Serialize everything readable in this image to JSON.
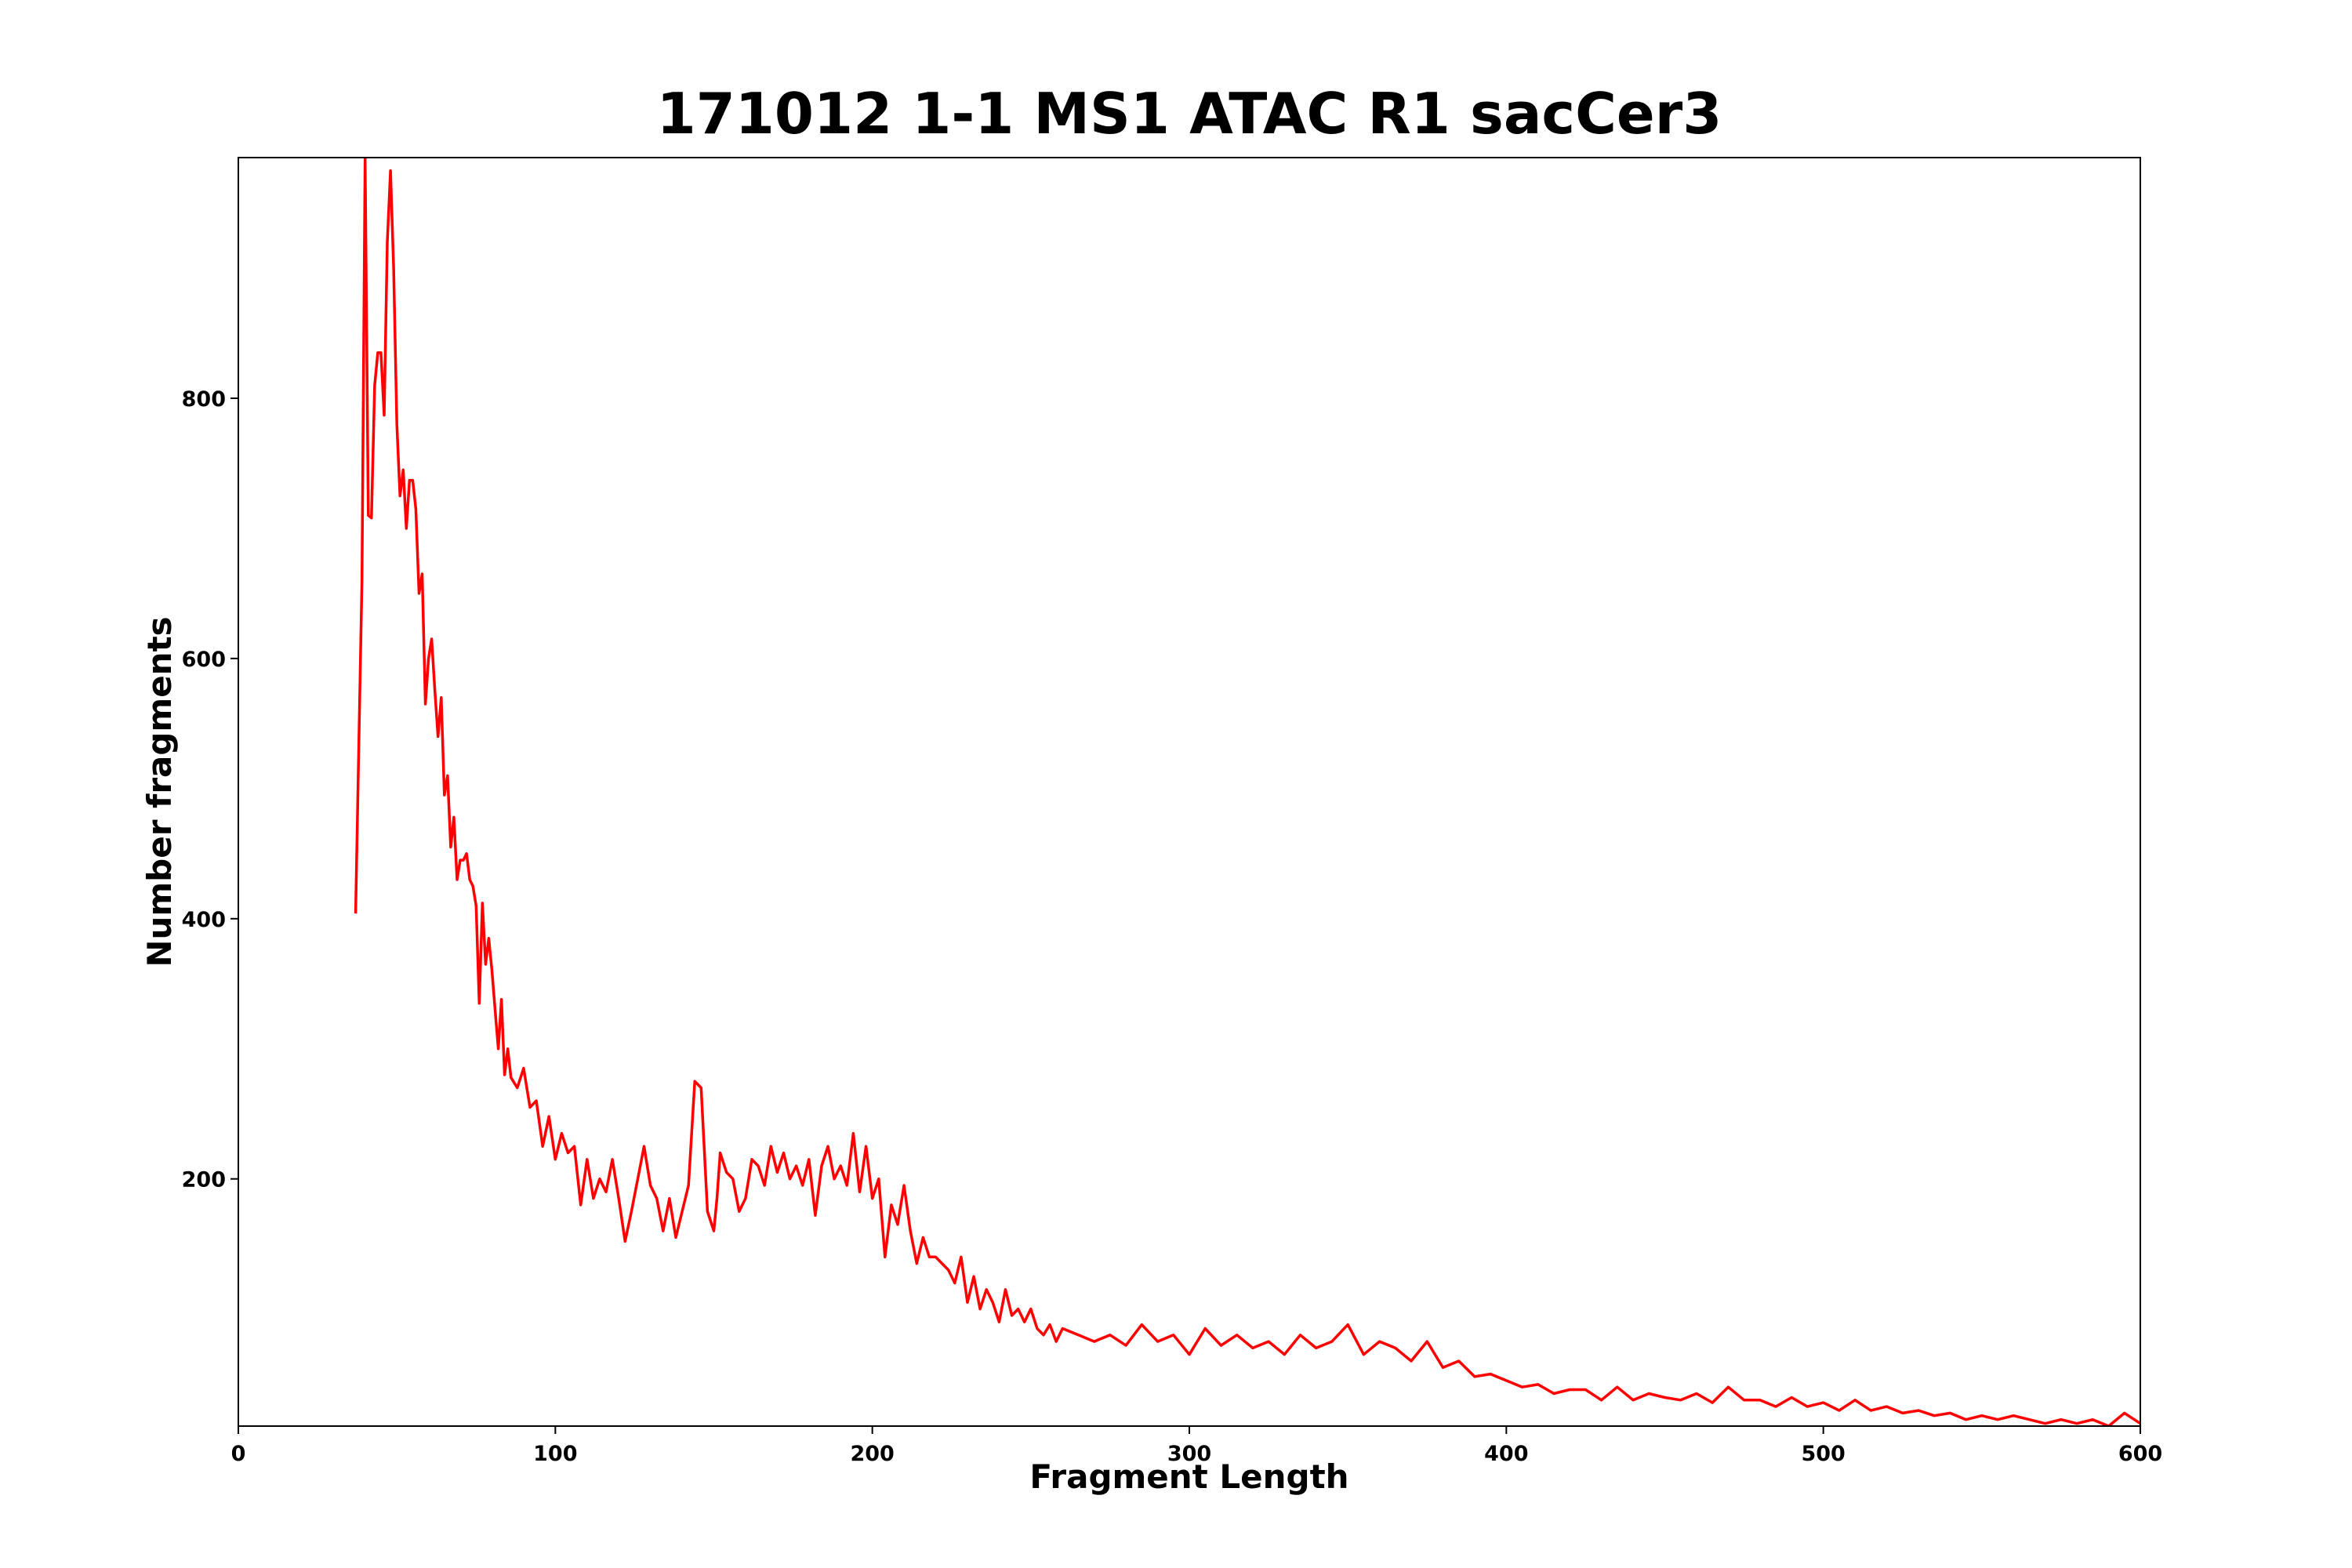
{
  "chart_data": {
    "type": "line",
    "title": "171012 1-1 MS1 ATAC R1 sacCer3",
    "xlabel": "Fragment Length",
    "ylabel": "Number fragments",
    "x": [
      37,
      39,
      40,
      41,
      42,
      43,
      44,
      45,
      46,
      47,
      48,
      49,
      50,
      51,
      52,
      53,
      54,
      55,
      56,
      57,
      58,
      59,
      60,
      61,
      62,
      63,
      64,
      65,
      66,
      67,
      68,
      69,
      70,
      71,
      72,
      73,
      74,
      75,
      76,
      77,
      78,
      79,
      80,
      81,
      82,
      83,
      84,
      85,
      86,
      88,
      90,
      92,
      94,
      96,
      98,
      100,
      102,
      104,
      106,
      108,
      110,
      112,
      114,
      116,
      118,
      120,
      122,
      124,
      126,
      128,
      130,
      132,
      134,
      136,
      138,
      140,
      142,
      144,
      146,
      148,
      150,
      151,
      152,
      154,
      156,
      158,
      160,
      162,
      164,
      166,
      168,
      170,
      172,
      174,
      176,
      178,
      180,
      182,
      184,
      186,
      188,
      190,
      192,
      194,
      196,
      198,
      200,
      202,
      204,
      206,
      208,
      210,
      212,
      214,
      216,
      218,
      220,
      222,
      224,
      226,
      228,
      230,
      232,
      234,
      236,
      238,
      240,
      242,
      244,
      246,
      248,
      250,
      252,
      254,
      256,
      258,
      260,
      265,
      270,
      275,
      280,
      285,
      290,
      295,
      300,
      305,
      310,
      315,
      320,
      325,
      330,
      335,
      340,
      345,
      350,
      355,
      360,
      365,
      370,
      375,
      380,
      385,
      390,
      395,
      400,
      405,
      410,
      415,
      420,
      425,
      430,
      435,
      440,
      445,
      450,
      455,
      460,
      465,
      470,
      475,
      480,
      485,
      490,
      495,
      500,
      505,
      510,
      515,
      520,
      525,
      530,
      535,
      540,
      545,
      550,
      555,
      560,
      565,
      570,
      575,
      580,
      585,
      590,
      595,
      600
    ],
    "series": [
      {
        "name": "fragments",
        "color": "#ff0000",
        "values": [
          404,
          660,
          985,
          710,
          708,
          810,
          835,
          835,
          787,
          920,
          975,
          900,
          780,
          725,
          745,
          700,
          737,
          737,
          715,
          650,
          665,
          565,
          600,
          615,
          575,
          540,
          570,
          495,
          510,
          455,
          478,
          430,
          445,
          445,
          450,
          430,
          425,
          410,
          335,
          412,
          365,
          385,
          360,
          330,
          300,
          338,
          280,
          300,
          278,
          270,
          285,
          255,
          260,
          225,
          248,
          215,
          235,
          220,
          225,
          180,
          215,
          185,
          200,
          190,
          215,
          185,
          152,
          175,
          200,
          225,
          195,
          185,
          160,
          185,
          155,
          175,
          195,
          275,
          270,
          175,
          160,
          185,
          220,
          205,
          200,
          175,
          185,
          215,
          210,
          195,
          225,
          205,
          220,
          200,
          210,
          195,
          215,
          172,
          210,
          225,
          200,
          210,
          195,
          235,
          190,
          225,
          185,
          200,
          140,
          180,
          165,
          195,
          160,
          135,
          155,
          140,
          140,
          135,
          130,
          120,
          140,
          105,
          125,
          100,
          115,
          105,
          90,
          115,
          95,
          100,
          90,
          100,
          85,
          80,
          88,
          75,
          85,
          80,
          75,
          80,
          72,
          88,
          75,
          80,
          65,
          85,
          72,
          80,
          70,
          75,
          65,
          80,
          70,
          75,
          88,
          65,
          75,
          70,
          60,
          75,
          55,
          60,
          48,
          50,
          45,
          40,
          42,
          35,
          38,
          38,
          30,
          40,
          30,
          35,
          32,
          30,
          35,
          28,
          40,
          30,
          30,
          25,
          32,
          25,
          28,
          22,
          30,
          22,
          25,
          20,
          22,
          18,
          20,
          15,
          18,
          15,
          18,
          15,
          12,
          15,
          12,
          15,
          10,
          20,
          12
        ]
      }
    ],
    "xlim": [
      0,
      600
    ],
    "ylim": [
      10,
      985
    ],
    "xticks": [
      0,
      100,
      200,
      300,
      400,
      500,
      600
    ],
    "yticks": [
      200,
      400,
      600,
      800
    ]
  }
}
